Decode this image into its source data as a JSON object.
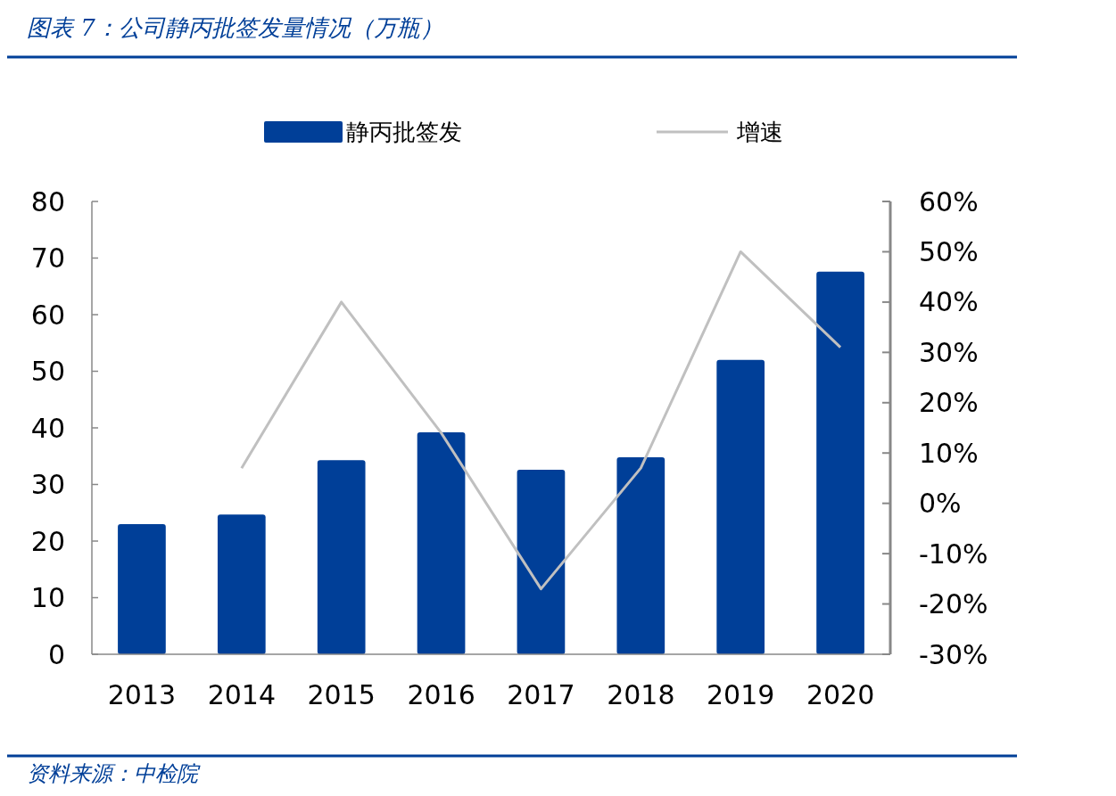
{
  "chart_data": {
    "type": "bar",
    "title": "图表 7：公司静丙批签发量情况（万瓶）",
    "annotations": [
      "资料来源：中检院"
    ],
    "categories": [
      "2013",
      "2014",
      "2015",
      "2016",
      "2017",
      "2018",
      "2019",
      "2020"
    ],
    "series": [
      {
        "name": "静丙批签发",
        "color": "#003f98",
        "values": [
          23.0,
          24.7,
          34.3,
          39.2,
          32.6,
          34.8,
          52.0,
          67.6
        ]
      },
      {
        "name": "增速",
        "type": "line",
        "axis": "y2",
        "color": "#c0c0c0",
        "values": [
          null,
          7,
          40,
          14,
          -17,
          7,
          50,
          31
        ]
      }
    ],
    "ylim": [
      0,
      80
    ],
    "yticks": [
      0,
      10,
      20,
      30,
      40,
      50,
      60,
      70,
      80
    ],
    "y2lim": [
      -30,
      60
    ],
    "y2ticks": [
      {
        "value": -30,
        "label": "-30%"
      },
      {
        "value": -20,
        "label": "-20%"
      },
      {
        "value": -10,
        "label": "-10%"
      },
      {
        "value": 0,
        "label": "0%"
      },
      {
        "value": 10,
        "label": "10%"
      },
      {
        "value": 20,
        "label": "20%"
      },
      {
        "value": 30,
        "label": "30%"
      },
      {
        "value": 40,
        "label": "40%"
      },
      {
        "value": 50,
        "label": "50%"
      },
      {
        "value": 60,
        "label": "60%"
      }
    ],
    "legend": "top",
    "grid": false
  }
}
